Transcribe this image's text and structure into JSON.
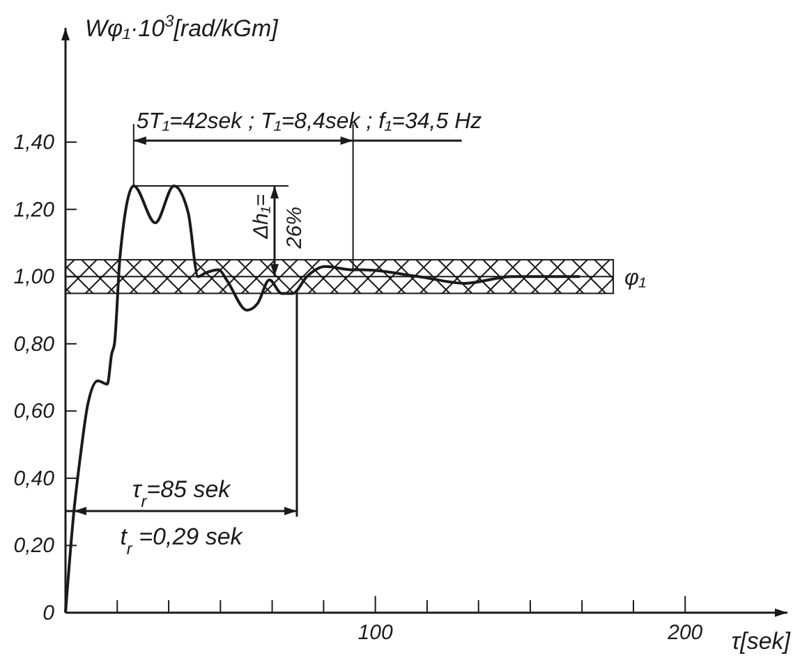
{
  "chart_data": {
    "type": "line",
    "xlabel": "τ[sek]",
    "ylabel": "Wφ₁·10$^{3}$[rad/kGm]",
    "xlim": [
      0,
      233
    ],
    "ylim": [
      0,
      1.74
    ],
    "xticks": [
      {
        "value": 0,
        "label": null
      },
      {
        "value": 16.7,
        "label": null
      },
      {
        "value": 33.3,
        "label": null
      },
      {
        "value": 50,
        "label": null
      },
      {
        "value": 66.7,
        "label": null
      },
      {
        "value": 83.3,
        "label": null
      },
      100,
      {
        "value": 116.7,
        "label": null
      },
      {
        "value": 133.3,
        "label": null
      },
      {
        "value": 150,
        "label": null
      },
      {
        "value": 166.7,
        "label": null
      },
      {
        "value": 183.3,
        "label": null
      },
      200
    ],
    "yticks": [
      0,
      {
        "value": 0.2,
        "label": "0,20"
      },
      {
        "value": 0.4,
        "label": "0,40"
      },
      {
        "value": 0.6,
        "label": "0,60"
      },
      {
        "value": 0.8,
        "label": "0,80"
      },
      {
        "value": 1.0,
        "label": "1,00"
      },
      {
        "value": 1.2,
        "label": "1,20"
      },
      {
        "value": 1.4,
        "label": "1,40"
      }
    ],
    "series": [
      {
        "color": "#1a1a1a",
        "x": [
          0,
          2.7,
          5,
          7.2,
          10.4,
          13.5,
          14.9,
          15.8,
          17.6,
          22,
          29,
          35,
          39.6,
          42.8,
          45,
          49.5,
          52,
          58.6,
          62,
          65.8,
          69.8,
          73.4,
          77.9,
          83.8,
          92.8,
          96,
          114,
          129,
          144,
          166
        ],
        "values": [
          0,
          0.3,
          0.48,
          0.62,
          0.69,
          0.68,
          0.77,
          0.8,
          1.06,
          1.27,
          1.16,
          1.27,
          1.19,
          1.0,
          1.01,
          1.02,
          0.99,
          0.9,
          0.92,
          0.99,
          0.95,
          0.95,
          1.0,
          1.03,
          1.02,
          1.02,
          1.0,
          0.98,
          1.0,
          1.0
        ]
      }
    ],
    "bands": [
      {
        "axis": "y",
        "from": 0.95,
        "to": 1.05,
        "label": "φ₁",
        "color": "#1a1a1a"
      }
    ],
    "ref_lines": [
      {
        "axis": "y",
        "value": 1.0
      }
    ],
    "annotations": [
      {
        "text": "5T₁=42sek ; T₁=8,4sek ; f₁=34,5 Hz",
        "x": 92.8,
        "y": 1.02
      },
      {
        "text": "Δh₁=",
        "x": 22,
        "y": 1.27
      },
      "26%",
      "τ$_{r}$=85 sek",
      "t$_{r}$ =0,29 sek"
    ],
    "grid": false,
    "marker": "none",
    "line_style": "solid"
  }
}
